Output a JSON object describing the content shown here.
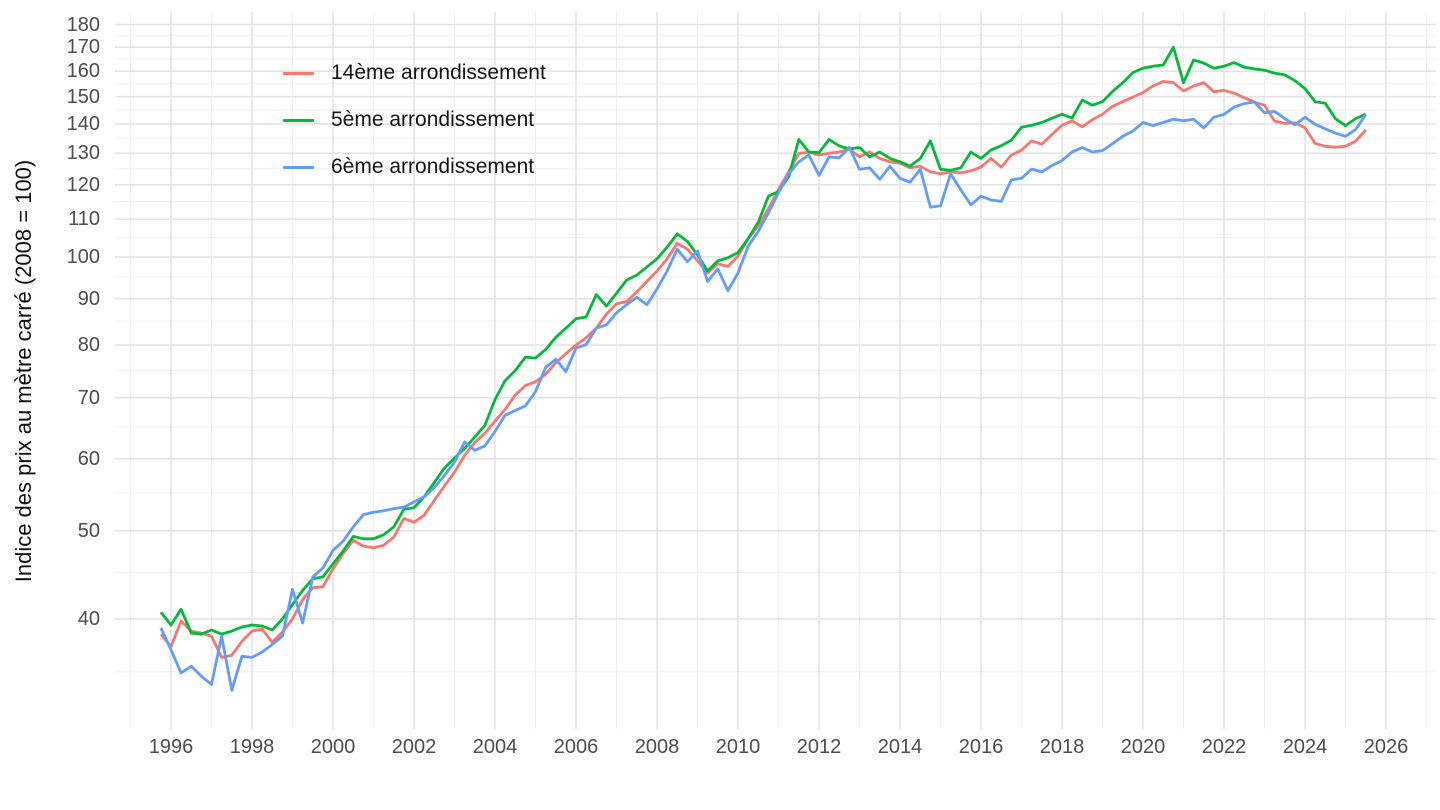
{
  "chart_data": {
    "type": "line",
    "title": "",
    "xlabel": "",
    "ylabel": "Indice des prix au mètre carré (2008 = 100)",
    "y_scale": "log10",
    "grid": true,
    "legend_position": "top-left-inside",
    "frequency": "quarterly",
    "x_start": 1995.75,
    "x_step": 0.25,
    "xlim": [
      1994.62,
      2027.23
    ],
    "ylim": [
      30.3,
      186
    ],
    "x_ticks": [
      1996,
      1998,
      2000,
      2002,
      2004,
      2006,
      2008,
      2010,
      2012,
      2014,
      2016,
      2018,
      2020,
      2022,
      2024,
      2026
    ],
    "y_ticks": [
      40,
      50,
      60,
      70,
      80,
      90,
      100,
      110,
      120,
      130,
      140,
      150,
      160,
      170,
      180
    ],
    "colors": {
      "major_grid": "#e4e4e4",
      "minor_grid": "#f0f0f0",
      "tick_text": "#4d4d4d",
      "background": "#ffffff"
    },
    "series": [
      {
        "name": "14ème arrondissement",
        "color": "#F8766D",
        "values": [
          38.5,
          37.3,
          39.8,
          38.8,
          38.6,
          38.3,
          36.3,
          36.5,
          37.8,
          38.8,
          39.0,
          37.7,
          38.7,
          40.0,
          42.0,
          43.3,
          43.4,
          45.4,
          47.2,
          48.8,
          48.1,
          47.9,
          48.2,
          49.2,
          51.6,
          51.1,
          52.0,
          54.0,
          56.0,
          58.0,
          60.5,
          62.5,
          64.0,
          66.0,
          68.0,
          70.5,
          72.2,
          72.9,
          74.3,
          76.5,
          78.3,
          80.0,
          81.5,
          83.5,
          86.5,
          88.8,
          89.3,
          91.5,
          94.0,
          96.5,
          99.5,
          103.5,
          102.0,
          99.0,
          96.0,
          98.3,
          97.6,
          100.2,
          104.7,
          108.2,
          112.9,
          118.6,
          124.0,
          129.9,
          130.4,
          129.4,
          130.0,
          130.4,
          131.4,
          128.8,
          130.4,
          128.3,
          127.2,
          126.8,
          125.3,
          125.8,
          124.0,
          123.4,
          124.0,
          123.7,
          124.3,
          125.5,
          128.3,
          125.5,
          129.4,
          131.0,
          134.1,
          133.0,
          136.3,
          139.5,
          141.1,
          139.0,
          141.5,
          143.5,
          146.4,
          148.1,
          149.8,
          151.6,
          154.1,
          155.9,
          155.4,
          152.2,
          154.1,
          155.4,
          151.9,
          152.4,
          151.3,
          149.6,
          147.9,
          146.8,
          141.0,
          140.2,
          140.4,
          138.6,
          133.3,
          132.3,
          132.0,
          132.3,
          134.0,
          137.9
        ]
      },
      {
        "name": "5ème arrondissement",
        "color": "#00BA38",
        "values": [
          40.7,
          39.4,
          41.0,
          38.6,
          38.5,
          38.9,
          38.5,
          38.8,
          39.2,
          39.4,
          39.3,
          38.9,
          40.0,
          41.5,
          43.0,
          44.3,
          44.5,
          46.0,
          47.5,
          49.3,
          49.0,
          49.0,
          49.5,
          50.5,
          52.8,
          53.0,
          54.5,
          56.5,
          58.6,
          60.1,
          61.6,
          63.4,
          65.3,
          69.7,
          73.1,
          75.0,
          77.6,
          77.4,
          79.1,
          81.6,
          83.5,
          85.5,
          85.9,
          90.9,
          88.3,
          91.2,
          94.3,
          95.5,
          97.5,
          99.5,
          102.5,
          106.0,
          104.0,
          100.5,
          96.5,
          99.0,
          99.8,
          101.1,
          104.7,
          109.2,
          116.6,
          118.0,
          122.4,
          134.6,
          130.4,
          130.2,
          134.6,
          132.4,
          131.4,
          131.9,
          128.8,
          130.4,
          128.3,
          127.2,
          125.8,
          128.3,
          134.1,
          124.8,
          124.5,
          125.3,
          130.4,
          128.3,
          131.1,
          132.5,
          134.4,
          138.8,
          139.5,
          140.5,
          142.0,
          143.5,
          142.1,
          148.7,
          146.8,
          148.1,
          152.0,
          155.4,
          159.4,
          161.2,
          162.0,
          162.5,
          170.0,
          155.4,
          164.6,
          163.3,
          161.2,
          162.0,
          163.5,
          161.6,
          160.9,
          160.4,
          159.2,
          158.5,
          156.2,
          153.1,
          148.1,
          147.5,
          141.9,
          139.4,
          141.9,
          143.5
        ]
      },
      {
        "name": "6ème arrondissement",
        "color": "#619CFF",
        "values": [
          39.1,
          37.0,
          34.9,
          35.5,
          34.6,
          33.9,
          38.3,
          33.4,
          36.4,
          36.3,
          36.8,
          37.5,
          38.3,
          43.1,
          39.6,
          44.5,
          45.5,
          47.6,
          48.7,
          50.5,
          52.1,
          52.4,
          52.6,
          52.9,
          53.1,
          53.8,
          54.5,
          55.8,
          57.5,
          59.5,
          62.6,
          61.3,
          62.0,
          64.3,
          67.0,
          67.8,
          68.6,
          71.1,
          75.6,
          77.2,
          74.8,
          79.4,
          80.1,
          83.5,
          84.2,
          86.8,
          88.6,
          90.3,
          88.6,
          92.2,
          96.5,
          102.0,
          98.8,
          101.5,
          94.0,
          97.0,
          91.8,
          96.0,
          102.7,
          106.7,
          111.8,
          117.6,
          123.4,
          127.2,
          129.4,
          122.9,
          128.8,
          128.5,
          131.9,
          124.8,
          125.3,
          121.7,
          125.8,
          122.0,
          120.8,
          124.8,
          113.4,
          113.8,
          123.4,
          118.5,
          114.1,
          116.6,
          115.5,
          115.1,
          121.5,
          122.0,
          124.9,
          124.0,
          126.0,
          127.6,
          130.4,
          131.9,
          130.4,
          130.9,
          133.2,
          135.7,
          137.5,
          140.5,
          139.4,
          140.5,
          141.7,
          141.1,
          141.7,
          138.6,
          142.4,
          143.4,
          146.1,
          147.4,
          148.0,
          144.0,
          144.5,
          141.9,
          139.7,
          142.4,
          139.9,
          138.3,
          136.8,
          135.7,
          138.0,
          143.4
        ]
      }
    ]
  }
}
